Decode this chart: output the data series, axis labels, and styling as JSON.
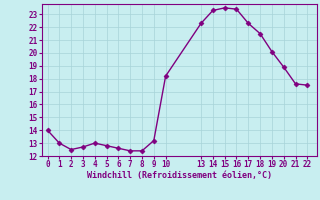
{
  "xlabel": "Windchill (Refroidissement éolien,°C)",
  "ylabel": "",
  "x_pts": [
    0,
    1,
    2,
    3,
    4,
    5,
    6,
    7,
    8,
    9,
    10,
    13,
    14,
    15,
    16,
    17,
    18,
    19,
    20,
    21,
    22
  ],
  "y_pts": [
    14,
    13,
    12.5,
    12.7,
    13,
    12.8,
    12.6,
    12.4,
    12.4,
    13.2,
    18.2,
    22.3,
    23.3,
    23.5,
    23.4,
    22.3,
    21.5,
    20.1,
    18.9,
    17.6,
    17.5
  ],
  "line_color": "#800080",
  "marker": "D",
  "marker_size": 2.5,
  "marker_linewidth": 0.5,
  "background_color": "#c8eef0",
  "grid_color": "#a8d4d8",
  "tick_color": "#800080",
  "label_color": "#800080",
  "ylim": [
    12,
    23.8
  ],
  "yticks": [
    12,
    13,
    14,
    15,
    16,
    17,
    18,
    19,
    20,
    21,
    22,
    23
  ],
  "xticks": [
    0,
    1,
    2,
    3,
    4,
    5,
    6,
    7,
    8,
    9,
    10,
    13,
    14,
    15,
    16,
    17,
    18,
    19,
    20,
    21,
    22
  ],
  "xlim": [
    -0.5,
    22.8
  ],
  "tick_fontsize": 5.5,
  "xlabel_fontsize": 6.0,
  "linewidth": 1.0
}
